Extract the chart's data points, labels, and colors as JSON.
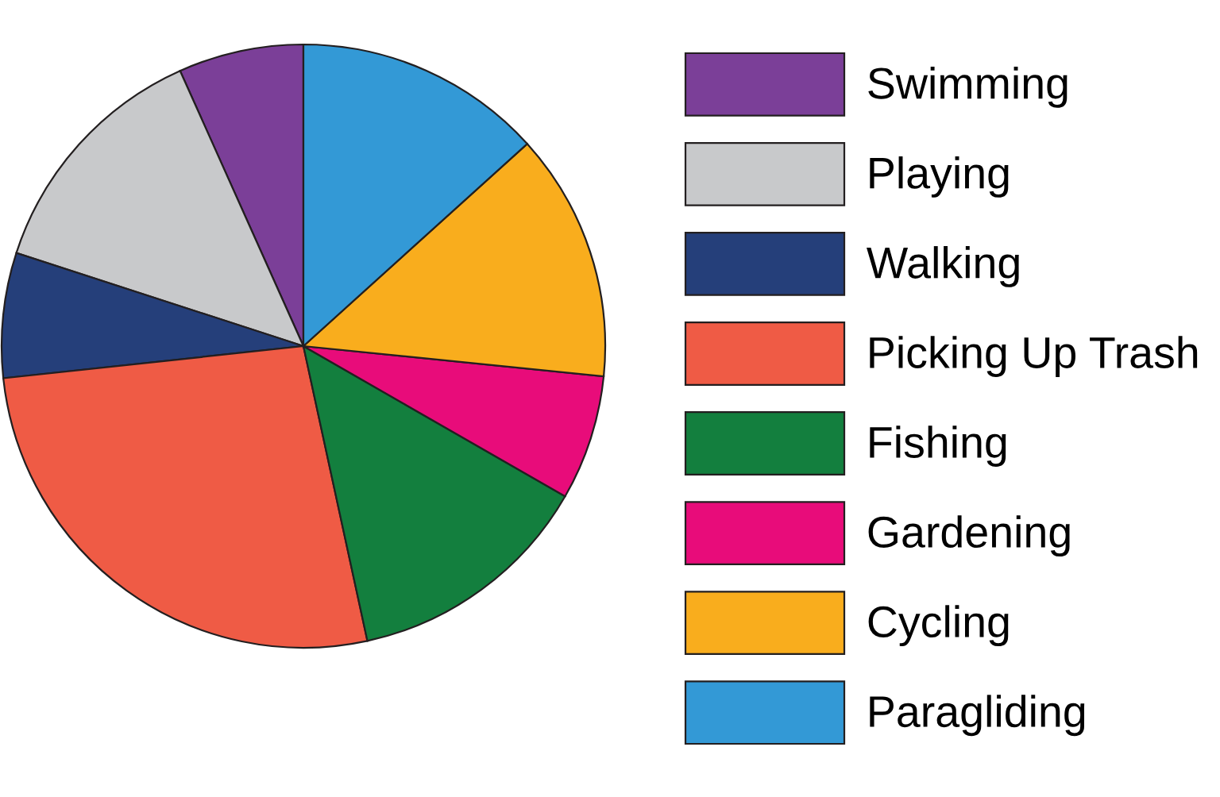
{
  "chart_data": {
    "type": "pie",
    "categories": [
      "Swimming",
      "Playing",
      "Walking",
      "Picking Up Trash",
      "Fishing",
      "Gardening",
      "Cycling",
      "Paragliding"
    ],
    "values": [
      6.7,
      13.3,
      6.7,
      26.7,
      13.3,
      6.7,
      13.3,
      13.3
    ],
    "colors": [
      "#7b3f98",
      "#c8c9cb",
      "#253f7a",
      "#ef5b45",
      "#137f3e",
      "#e80c7a",
      "#f9ad1d",
      "#3399d6"
    ],
    "legend": "right"
  }
}
